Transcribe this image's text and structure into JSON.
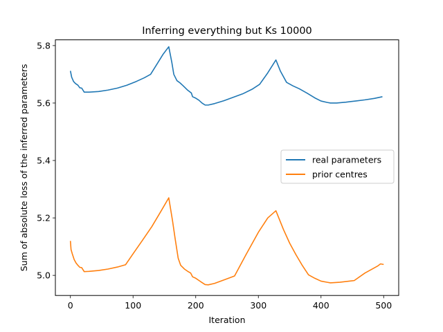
{
  "chart_data": {
    "type": "line",
    "title": "Inferring everything but Ks 10000",
    "xlabel": "Iteration",
    "ylabel": "Sum of absolute loss of the inferred parameters",
    "xlim": [
      -24,
      524
    ],
    "ylim": [
      4.93,
      5.82
    ],
    "xticks": [
      0,
      100,
      200,
      300,
      400,
      500
    ],
    "yticks": [
      5.0,
      5.2,
      5.4,
      5.6,
      5.8
    ],
    "grid": false,
    "legend_position": "center-right",
    "series": [
      {
        "name": "real parameters",
        "color": "#1f77b4",
        "points": [
          [
            0,
            5.712
          ],
          [
            2,
            5.69
          ],
          [
            5,
            5.675
          ],
          [
            8,
            5.668
          ],
          [
            12,
            5.662
          ],
          [
            15,
            5.653
          ],
          [
            18,
            5.652
          ],
          [
            22,
            5.638
          ],
          [
            30,
            5.638
          ],
          [
            45,
            5.64
          ],
          [
            60,
            5.645
          ],
          [
            75,
            5.652
          ],
          [
            90,
            5.662
          ],
          [
            105,
            5.675
          ],
          [
            118,
            5.688
          ],
          [
            128,
            5.7
          ],
          [
            138,
            5.735
          ],
          [
            148,
            5.77
          ],
          [
            157,
            5.796
          ],
          [
            162,
            5.74
          ],
          [
            165,
            5.7
          ],
          [
            170,
            5.678
          ],
          [
            175,
            5.67
          ],
          [
            180,
            5.66
          ],
          [
            187,
            5.645
          ],
          [
            193,
            5.635
          ],
          [
            195,
            5.622
          ],
          [
            200,
            5.617
          ],
          [
            205,
            5.61
          ],
          [
            210,
            5.6
          ],
          [
            215,
            5.593
          ],
          [
            220,
            5.593
          ],
          [
            230,
            5.598
          ],
          [
            245,
            5.608
          ],
          [
            260,
            5.62
          ],
          [
            275,
            5.632
          ],
          [
            290,
            5.648
          ],
          [
            302,
            5.665
          ],
          [
            315,
            5.705
          ],
          [
            328,
            5.75
          ],
          [
            335,
            5.712
          ],
          [
            345,
            5.672
          ],
          [
            355,
            5.66
          ],
          [
            365,
            5.65
          ],
          [
            378,
            5.634
          ],
          [
            390,
            5.618
          ],
          [
            400,
            5.607
          ],
          [
            410,
            5.602
          ],
          [
            415,
            5.6
          ],
          [
            425,
            5.6
          ],
          [
            440,
            5.603
          ],
          [
            455,
            5.607
          ],
          [
            470,
            5.611
          ],
          [
            485,
            5.616
          ],
          [
            498,
            5.622
          ]
        ]
      },
      {
        "name": "prior centres",
        "color": "#ff7f0e",
        "points": [
          [
            0,
            5.12
          ],
          [
            1,
            5.09
          ],
          [
            3,
            5.075
          ],
          [
            6,
            5.055
          ],
          [
            9,
            5.043
          ],
          [
            12,
            5.035
          ],
          [
            15,
            5.028
          ],
          [
            18,
            5.027
          ],
          [
            22,
            5.013
          ],
          [
            30,
            5.014
          ],
          [
            45,
            5.017
          ],
          [
            60,
            5.022
          ],
          [
            75,
            5.029
          ],
          [
            88,
            5.037
          ],
          [
            100,
            5.075
          ],
          [
            115,
            5.122
          ],
          [
            130,
            5.17
          ],
          [
            145,
            5.225
          ],
          [
            157,
            5.27
          ],
          [
            163,
            5.19
          ],
          [
            167,
            5.13
          ],
          [
            172,
            5.06
          ],
          [
            176,
            5.035
          ],
          [
            182,
            5.022
          ],
          [
            188,
            5.013
          ],
          [
            192,
            5.008
          ],
          [
            195,
            4.995
          ],
          [
            200,
            4.99
          ],
          [
            208,
            4.978
          ],
          [
            215,
            4.968
          ],
          [
            220,
            4.967
          ],
          [
            230,
            4.972
          ],
          [
            245,
            4.984
          ],
          [
            262,
            4.998
          ],
          [
            280,
            5.071
          ],
          [
            300,
            5.15
          ],
          [
            315,
            5.2
          ],
          [
            328,
            5.225
          ],
          [
            340,
            5.16
          ],
          [
            350,
            5.112
          ],
          [
            360,
            5.072
          ],
          [
            370,
            5.035
          ],
          [
            380,
            5.002
          ],
          [
            390,
            4.99
          ],
          [
            400,
            4.98
          ],
          [
            410,
            4.976
          ],
          [
            415,
            4.974
          ],
          [
            430,
            4.976
          ],
          [
            453,
            4.982
          ],
          [
            470,
            5.008
          ],
          [
            490,
            5.032
          ],
          [
            495,
            5.04
          ],
          [
            500,
            5.038
          ]
        ]
      }
    ]
  }
}
